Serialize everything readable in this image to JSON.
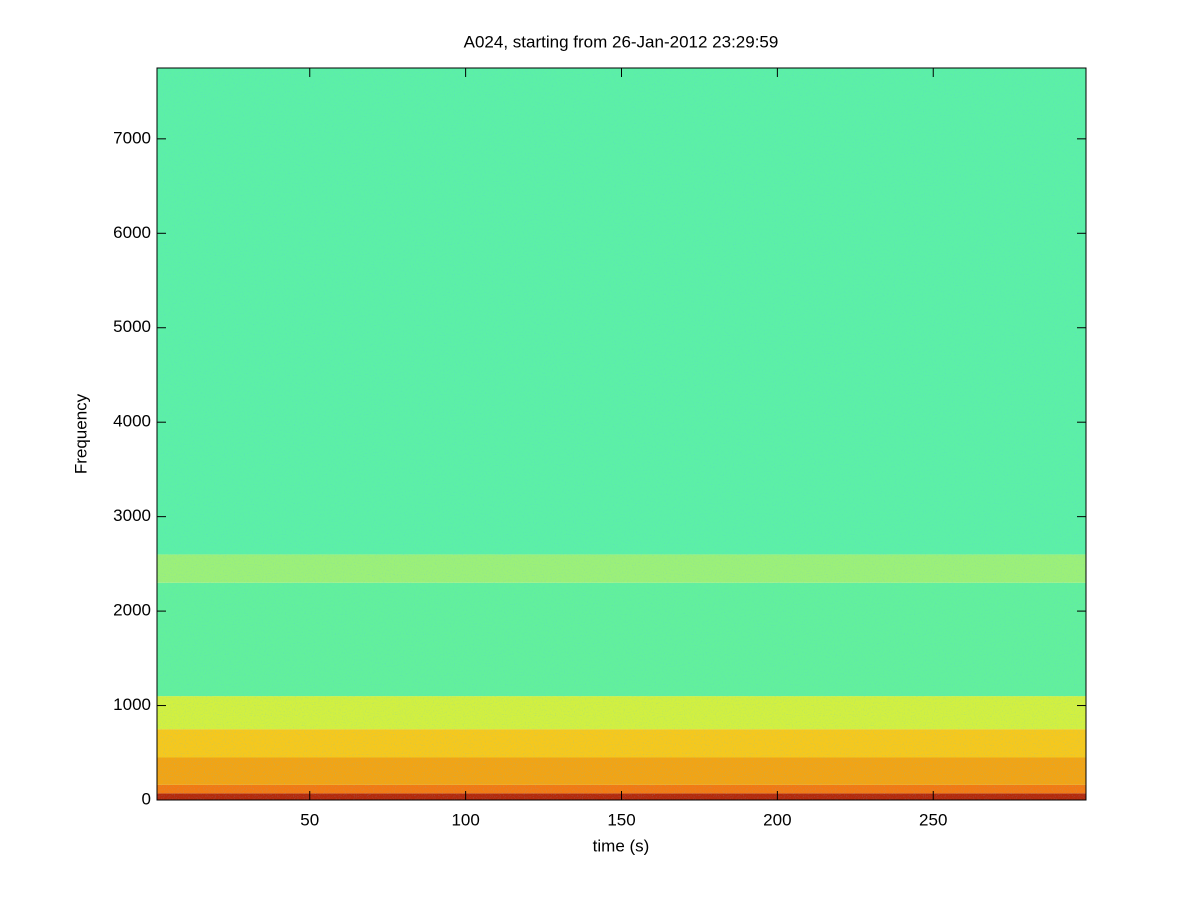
{
  "chart_data": {
    "type": "spectrogram",
    "title": "A024, starting from 26-Jan-2012 23:29:59",
    "x_label": "time (s)",
    "y_label": "Frequency",
    "xlim": [
      1,
      299
    ],
    "xticks": [
      50,
      100,
      150,
      200,
      250
    ],
    "ylim": [
      0,
      7750
    ],
    "yticks": [
      0,
      1000,
      2000,
      3000,
      4000,
      5000,
      6000,
      7000
    ],
    "bands": [
      {
        "from": 0,
        "to": 70,
        "color": "#b42a0c"
      },
      {
        "from": 70,
        "to": 160,
        "color": "#f27a12"
      },
      {
        "from": 160,
        "to": 450,
        "color": "#f2a414"
      },
      {
        "from": 450,
        "to": 750,
        "color": "#f6c81c"
      },
      {
        "from": 750,
        "to": 1100,
        "color": "#d2f040"
      },
      {
        "from": 1100,
        "to": 2300,
        "color": "#62f09c"
      },
      {
        "from": 2300,
        "to": 2600,
        "color": "#9cf078"
      },
      {
        "from": 2600,
        "to": 7750,
        "color": "#5cf0a6"
      }
    ]
  }
}
